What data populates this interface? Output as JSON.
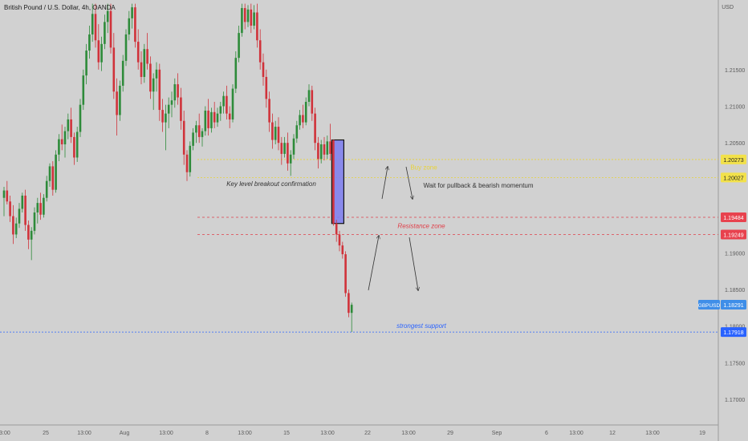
{
  "header": {
    "title": "British Pound / U.S. Dollar, 4h, OANDA",
    "currency": "USD"
  },
  "chart_data": {
    "type": "candlestick",
    "symbol": "GBPUSD",
    "ylim": [
      1.1665,
      1.2245
    ],
    "y_ticks": [
      "1.21500",
      "1.21000",
      "1.20500",
      "1.19000",
      "1.18500",
      "1.18000",
      "1.17500",
      "1.17000"
    ],
    "x_ticks": [
      "13:00",
      "25",
      "13:00",
      "Aug",
      "13:00",
      "8",
      "13:00",
      "15",
      "13:00",
      "22",
      "13:00",
      "29",
      "Sep",
      "6",
      "13:00",
      "12",
      "13:00",
      "19"
    ],
    "price_labels": [
      {
        "label": "1.20273",
        "value": 1.20273,
        "style": "yellow"
      },
      {
        "label": "1.20027",
        "value": 1.20027,
        "style": "yellow"
      },
      {
        "label": "1.19484",
        "value": 1.19484,
        "style": "red"
      },
      {
        "label": "1.19249",
        "value": 1.19249,
        "style": "red"
      },
      {
        "label": "1.18291",
        "value": 1.18291,
        "style": "blue"
      },
      {
        "label": "1.17918",
        "value": 1.17918,
        "style": "blue-dark"
      }
    ],
    "symbol_badge": "GBPUSD",
    "candles": [
      [
        1.1975,
        1.199,
        1.195,
        1.1985
      ],
      [
        1.1985,
        1.1998,
        1.1966,
        1.197
      ],
      [
        1.197,
        1.1978,
        1.1942,
        1.195
      ],
      [
        1.195,
        1.1965,
        1.1912,
        1.1925
      ],
      [
        1.1925,
        1.1948,
        1.192,
        1.194
      ],
      [
        1.194,
        1.1968,
        1.1934,
        1.196
      ],
      [
        1.196,
        1.1982,
        1.1955,
        1.1978
      ],
      [
        1.1978,
        1.1986,
        1.193,
        1.1938
      ],
      [
        1.1938,
        1.1944,
        1.1905,
        1.1918
      ],
      [
        1.1918,
        1.1935,
        1.189,
        1.193
      ],
      [
        1.193,
        1.1962,
        1.1925,
        1.1955
      ],
      [
        1.1955,
        1.1975,
        1.194,
        1.1968
      ],
      [
        1.1968,
        1.1982,
        1.1945,
        1.1952
      ],
      [
        1.1952,
        1.198,
        1.1948,
        1.1975
      ],
      [
        1.1975,
        1.2005,
        1.197,
        1.1998
      ],
      [
        1.1998,
        1.2022,
        1.199,
        1.2018
      ],
      [
        1.2018,
        1.2025,
        1.1978,
        1.1986
      ],
      [
        1.1986,
        1.204,
        1.1982,
        1.2034
      ],
      [
        1.2034,
        1.2062,
        1.2025,
        1.2055
      ],
      [
        1.2055,
        1.2075,
        1.204,
        1.2048
      ],
      [
        1.2048,
        1.2072,
        1.203,
        1.2066
      ],
      [
        1.2066,
        1.209,
        1.2055,
        1.2082
      ],
      [
        1.2082,
        1.2098,
        1.205,
        1.2058
      ],
      [
        1.2058,
        1.2064,
        1.202,
        1.203
      ],
      [
        1.203,
        1.2072,
        1.2024,
        1.2065
      ],
      [
        1.2065,
        1.211,
        1.2058,
        1.2102
      ],
      [
        1.2102,
        1.215,
        1.2095,
        1.2142
      ],
      [
        1.2142,
        1.2185,
        1.213,
        1.2176
      ],
      [
        1.2176,
        1.221,
        1.2165,
        1.2198
      ],
      [
        1.2198,
        1.224,
        1.2188,
        1.2226
      ],
      [
        1.2226,
        1.224,
        1.218,
        1.219
      ],
      [
        1.219,
        1.2212,
        1.215,
        1.216
      ],
      [
        1.216,
        1.2195,
        1.2148,
        1.2185
      ],
      [
        1.2185,
        1.2225,
        1.2178,
        1.2215
      ],
      [
        1.2215,
        1.224,
        1.22,
        1.223
      ],
      [
        1.223,
        1.224,
        1.2172,
        1.218
      ],
      [
        1.218,
        1.22,
        1.211,
        1.212
      ],
      [
        1.212,
        1.2138,
        1.206,
        1.2088
      ],
      [
        1.2088,
        1.2135,
        1.208,
        1.2128
      ],
      [
        1.2128,
        1.217,
        1.212,
        1.2162
      ],
      [
        1.2162,
        1.2205,
        1.2155,
        1.2198
      ],
      [
        1.2198,
        1.223,
        1.219,
        1.222
      ],
      [
        1.222,
        1.224,
        1.2206,
        1.2235
      ],
      [
        1.2235,
        1.224,
        1.218,
        1.2188
      ],
      [
        1.2188,
        1.2205,
        1.215,
        1.216
      ],
      [
        1.216,
        1.2175,
        1.213,
        1.214
      ],
      [
        1.214,
        1.2185,
        1.2132,
        1.2178
      ],
      [
        1.2178,
        1.22,
        1.215,
        1.2158
      ],
      [
        1.2158,
        1.2168,
        1.211,
        1.212
      ],
      [
        1.212,
        1.2145,
        1.2095,
        1.2138
      ],
      [
        1.2138,
        1.216,
        1.212,
        1.215
      ],
      [
        1.215,
        1.2158,
        1.208,
        1.2095
      ],
      [
        1.2095,
        1.211,
        1.2065,
        1.2078
      ],
      [
        1.2078,
        1.2102,
        1.204,
        1.209
      ],
      [
        1.209,
        1.2112,
        1.207,
        1.2102
      ],
      [
        1.2102,
        1.212,
        1.2085,
        1.2108
      ],
      [
        1.2108,
        1.2138,
        1.2098,
        1.213
      ],
      [
        1.213,
        1.2145,
        1.2102,
        1.2112
      ],
      [
        1.2112,
        1.2125,
        1.2068,
        1.208
      ],
      [
        1.208,
        1.2094,
        1.202,
        1.2034
      ],
      [
        1.2034,
        1.204,
        1.1998,
        1.201
      ],
      [
        1.201,
        1.2052,
        1.2004,
        1.2046
      ],
      [
        1.2046,
        1.207,
        1.204,
        1.2064
      ],
      [
        1.2064,
        1.208,
        1.205,
        1.2074
      ],
      [
        1.2074,
        1.209,
        1.205,
        1.2058
      ],
      [
        1.2058,
        1.207,
        1.2045,
        1.2066
      ],
      [
        1.2066,
        1.21,
        1.206,
        1.2094
      ],
      [
        1.2094,
        1.211,
        1.206,
        1.207
      ],
      [
        1.207,
        1.2098,
        1.2064,
        1.2092
      ],
      [
        1.2092,
        1.2106,
        1.207,
        1.2078
      ],
      [
        1.2078,
        1.2098,
        1.2072,
        1.209
      ],
      [
        1.209,
        1.2106,
        1.208,
        1.21
      ],
      [
        1.21,
        1.212,
        1.209,
        1.2114
      ],
      [
        1.2114,
        1.2128,
        1.2082,
        1.209
      ],
      [
        1.209,
        1.21,
        1.207,
        1.2082
      ],
      [
        1.2082,
        1.213,
        1.2078,
        1.2124
      ],
      [
        1.2124,
        1.2175,
        1.2118,
        1.2166
      ],
      [
        1.2166,
        1.221,
        1.216,
        1.22
      ],
      [
        1.22,
        1.224,
        1.2195,
        1.2234
      ],
      [
        1.2234,
        1.224,
        1.2205,
        1.2215
      ],
      [
        1.2215,
        1.2238,
        1.2208,
        1.2232
      ],
      [
        1.2232,
        1.224,
        1.22,
        1.221
      ],
      [
        1.221,
        1.2238,
        1.2205,
        1.2228
      ],
      [
        1.2228,
        1.224,
        1.218,
        1.219
      ],
      [
        1.219,
        1.2205,
        1.215,
        1.216
      ],
      [
        1.216,
        1.2172,
        1.2128,
        1.214
      ],
      [
        1.214,
        1.215,
        1.2098,
        1.211
      ],
      [
        1.211,
        1.212,
        1.2065,
        1.2078
      ],
      [
        1.2078,
        1.209,
        1.2042,
        1.2054
      ],
      [
        1.2054,
        1.208,
        1.2048,
        1.2072
      ],
      [
        1.2072,
        1.2085,
        1.204,
        1.205
      ],
      [
        1.205,
        1.2058,
        1.202,
        1.2035
      ],
      [
        1.2035,
        1.2058,
        1.203,
        1.205
      ],
      [
        1.205,
        1.2064,
        1.2012,
        1.2022
      ],
      [
        1.2022,
        1.204,
        1.2005,
        1.2034
      ],
      [
        1.2034,
        1.2062,
        1.2028,
        1.2056
      ],
      [
        1.2056,
        1.208,
        1.205,
        1.2074
      ],
      [
        1.2074,
        1.2095,
        1.2068,
        1.2088
      ],
      [
        1.2088,
        1.2102,
        1.207,
        1.2078
      ],
      [
        1.2078,
        1.2112,
        1.2074,
        1.2106
      ],
      [
        1.2106,
        1.213,
        1.21,
        1.2122
      ],
      [
        1.2122,
        1.2128,
        1.208,
        1.209
      ],
      [
        1.209,
        1.2098,
        1.204,
        1.205
      ],
      [
        1.205,
        1.2058,
        1.2015,
        1.2028
      ],
      [
        1.2028,
        1.2054,
        1.2022,
        1.2048
      ],
      [
        1.2048,
        1.2058,
        1.2026,
        1.2034
      ],
      [
        1.2034,
        1.206,
        1.2028,
        1.2052
      ],
      [
        1.2052,
        1.2076,
        1.2026,
        1.2035
      ],
      [
        1.2054,
        1.2054,
        1.1937,
        1.194
      ],
      [
        1.194,
        1.1945,
        1.1915,
        1.1925
      ],
      [
        1.1925,
        1.193,
        1.1902,
        1.191
      ],
      [
        1.191,
        1.1915,
        1.1892,
        1.1898
      ],
      [
        1.1898,
        1.1902,
        1.184,
        1.1845
      ],
      [
        1.1845,
        1.185,
        1.1812,
        1.1818
      ],
      [
        1.1818,
        1.1832,
        1.1792,
        1.1829
      ]
    ],
    "drawings": {
      "breakout_box": {
        "from_index": 108,
        "to_index": 108,
        "top": 1.2054,
        "bottom": 1.194
      },
      "zones": [
        {
          "name": "buy-zone",
          "label": "Buy zone",
          "top": 1.20273,
          "bottom": 1.20027
        },
        {
          "name": "resistance-zone",
          "label": "Resistance zone",
          "top": 1.19484,
          "bottom": 1.19249
        }
      ],
      "support": {
        "label": "strongest support",
        "value": 1.17918
      }
    },
    "annotations": [
      {
        "text": "Key level breakout confirmation",
        "anchor_index": 86,
        "price": 1.1973
      },
      {
        "text": "Wait for pullback & bearish momentum",
        "anchor_index": 120,
        "price": 1.1972
      }
    ],
    "colors": {
      "up": "#2e8b3a",
      "down": "#d0323a",
      "bg": "#d1d1d1",
      "buy": "#e8d23a",
      "resist": "#e0404a",
      "support": "#2962ff",
      "box": "#7d7df0"
    }
  }
}
